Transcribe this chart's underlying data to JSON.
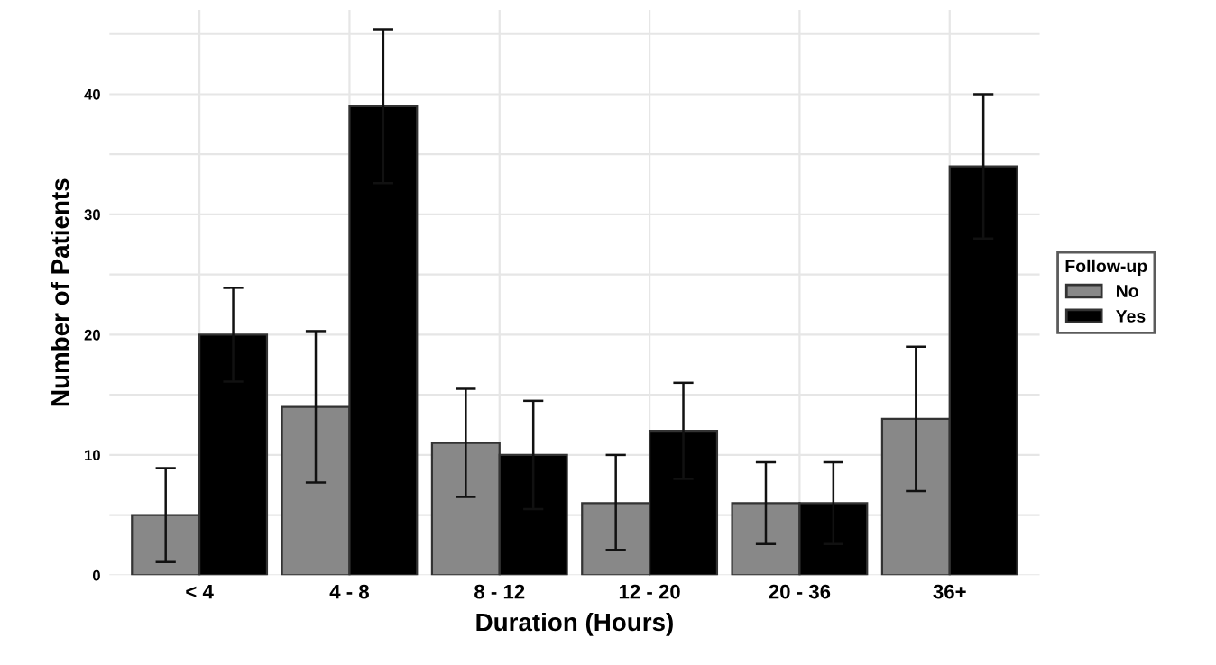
{
  "chart_data": {
    "type": "bar",
    "xlabel": "Duration (Hours)",
    "ylabel": "Number of Patients",
    "legend_title": "Follow-up",
    "categories": [
      "< 4",
      "4 - 8",
      "8 - 12",
      "12 - 20",
      "20 - 36",
      "36+"
    ],
    "series": [
      {
        "name": "No",
        "color": "#888888",
        "values": [
          5,
          14,
          11,
          6,
          6,
          13
        ],
        "errors": [
          [
            1.1,
            8.9
          ],
          [
            7.7,
            20.3
          ],
          [
            6.5,
            15.5
          ],
          [
            2.1,
            10
          ],
          [
            2.6,
            9.4
          ],
          [
            7,
            19
          ]
        ]
      },
      {
        "name": "Yes",
        "color": "#000000",
        "values": [
          20,
          39,
          10,
          12,
          6,
          34
        ],
        "errors": [
          [
            16.1,
            23.9
          ],
          [
            32.6,
            45.4
          ],
          [
            5.5,
            14.5
          ],
          [
            8,
            16
          ],
          [
            2.6,
            9.4
          ],
          [
            28,
            40
          ]
        ]
      }
    ],
    "ylim": [
      0,
      47
    ],
    "yticks": [
      0,
      {
        "value": 5,
        "label": null
      },
      10,
      {
        "value": 15,
        "label": null
      },
      20,
      {
        "value": 25,
        "label": null
      },
      30,
      {
        "value": 35,
        "label": null
      },
      40,
      {
        "value": 45,
        "label": null
      }
    ],
    "grid": true,
    "legend": "right"
  }
}
